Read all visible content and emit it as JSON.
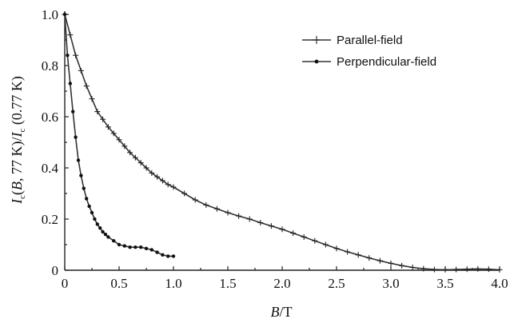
{
  "chart_data": {
    "type": "line",
    "xlabel": "B/T",
    "ylabel": "I_c(B, 77 K)/I_c(0.77 K)",
    "xlim": [
      0,
      4.0
    ],
    "ylim": [
      0,
      1.0
    ],
    "x_ticks": [
      "0",
      "0.5",
      "1.0",
      "1.5",
      "2.0",
      "2.5",
      "3.0",
      "3.5",
      "4.0"
    ],
    "y_ticks": [
      "0",
      "0.2",
      "0.4",
      "0.6",
      "0.8",
      "1.0"
    ],
    "legend_position": "top-right",
    "grid": false,
    "series": [
      {
        "name": "Parallel-field",
        "marker": "plus",
        "x": [
          0,
          0.05,
          0.1,
          0.15,
          0.2,
          0.25,
          0.3,
          0.35,
          0.4,
          0.45,
          0.5,
          0.55,
          0.6,
          0.65,
          0.7,
          0.75,
          0.8,
          0.85,
          0.9,
          0.95,
          1.0,
          1.1,
          1.2,
          1.3,
          1.4,
          1.5,
          1.6,
          1.7,
          1.8,
          1.9,
          2.0,
          2.1,
          2.2,
          2.3,
          2.4,
          2.5,
          2.6,
          2.7,
          2.8,
          2.9,
          3.0,
          3.1,
          3.2,
          3.3,
          3.4,
          3.5,
          3.6,
          3.7,
          3.8,
          3.9,
          4.0
        ],
        "y": [
          1.0,
          0.92,
          0.84,
          0.78,
          0.72,
          0.67,
          0.62,
          0.59,
          0.56,
          0.535,
          0.51,
          0.485,
          0.46,
          0.44,
          0.42,
          0.4,
          0.38,
          0.365,
          0.35,
          0.335,
          0.325,
          0.3,
          0.275,
          0.255,
          0.24,
          0.225,
          0.212,
          0.2,
          0.186,
          0.173,
          0.16,
          0.145,
          0.13,
          0.115,
          0.1,
          0.085,
          0.072,
          0.06,
          0.048,
          0.037,
          0.027,
          0.018,
          0.011,
          0.006,
          0.003,
          0.002,
          0.003,
          0.004,
          0.005,
          0.004,
          0.002
        ]
      },
      {
        "name": "Perpendicular-field",
        "marker": "dot",
        "x": [
          0,
          0.025,
          0.05,
          0.075,
          0.1,
          0.125,
          0.15,
          0.175,
          0.2,
          0.225,
          0.25,
          0.275,
          0.3,
          0.325,
          0.35,
          0.375,
          0.4,
          0.45,
          0.5,
          0.55,
          0.6,
          0.65,
          0.7,
          0.75,
          0.8,
          0.85,
          0.9,
          0.95,
          1.0
        ],
        "y": [
          1.0,
          0.84,
          0.73,
          0.62,
          0.52,
          0.43,
          0.37,
          0.32,
          0.28,
          0.25,
          0.225,
          0.2,
          0.18,
          0.165,
          0.15,
          0.14,
          0.13,
          0.115,
          0.1,
          0.095,
          0.09,
          0.09,
          0.09,
          0.085,
          0.08,
          0.07,
          0.06,
          0.055,
          0.055
        ]
      }
    ]
  }
}
